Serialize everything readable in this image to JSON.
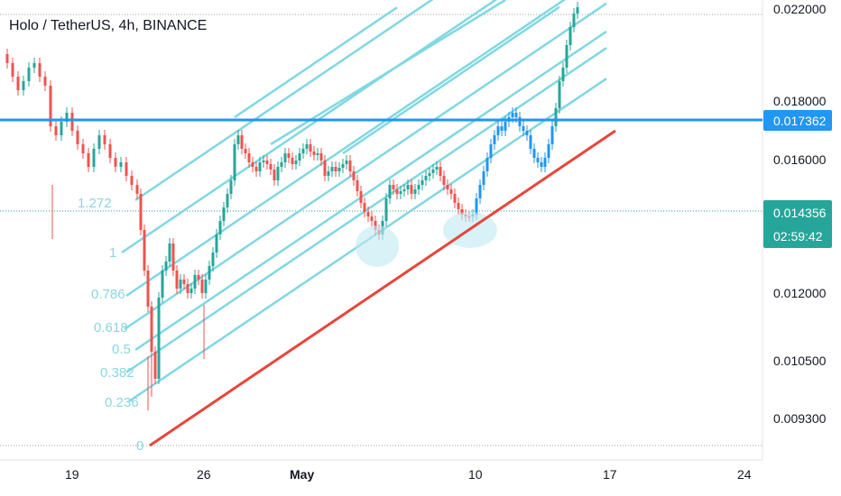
{
  "header": {
    "title": "Holo / TetherUS, 4h, BINANCE"
  },
  "colors": {
    "up": "#26a69a",
    "down": "#ef5350",
    "blue_candle": "#2196f3",
    "fib": "#7fd8e2",
    "support": "#e8463a",
    "hline": "#2196f3",
    "price_tag_blue": "#2196f3",
    "price_tag_green": "#26a69a"
  },
  "chart_data": {
    "type": "candlestick",
    "title": "Holo / TetherUS, 4h, BINANCE",
    "y_ticks": [
      "0.022000",
      "0.018000",
      "0.016000",
      "0.012000",
      "0.010500",
      "0.009300"
    ],
    "x_ticks": [
      "19",
      "26",
      "May",
      "10",
      "17",
      "24"
    ],
    "fib_levels": [
      "1.272",
      "1",
      "0.786",
      "0.618",
      "0.5",
      "0.382",
      "0.236",
      "0"
    ],
    "horizontal_line": {
      "value": "0.017362",
      "color": "#2196f3"
    },
    "last_price": {
      "value": "0.014356",
      "countdown": "02:59:42"
    },
    "support_line": {
      "color": "#e8463a",
      "from": "Apr 23",
      "to": "May 17"
    },
    "channel_lines": 10,
    "grid": false
  }
}
